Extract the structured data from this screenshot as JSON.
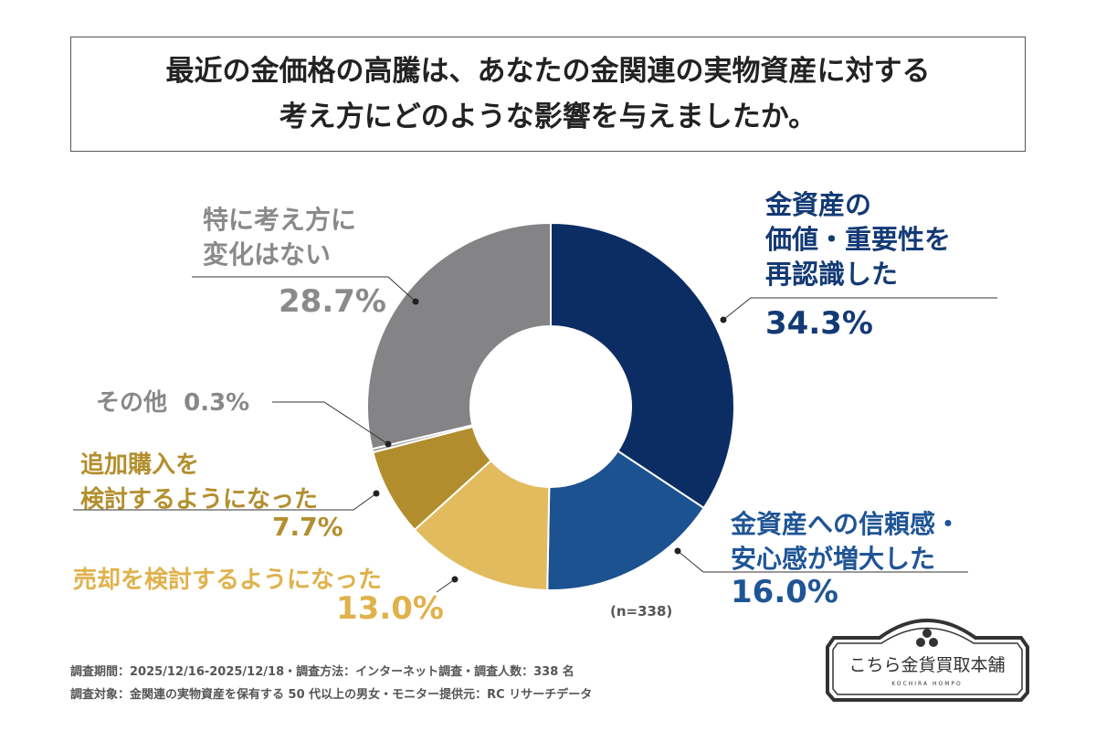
{
  "title": {
    "line1": "最近の金価格の高騰は、あなたの金関連の実物資産に対する",
    "line2": "考え方にどのような影響を与えましたか。"
  },
  "chart_data": {
    "type": "donut",
    "sample_size": "(n=338)",
    "slices": [
      {
        "label_lines": [
          "金資産の",
          "価値・重要性を",
          "再認識した"
        ],
        "value": 34.3,
        "display": "34.3%",
        "color": "#0c2d64",
        "text_color": "#133a75"
      },
      {
        "label_lines": [
          "金資産への信頼感・",
          "安心感が増大した"
        ],
        "value": 16.0,
        "display": "16.0%",
        "color": "#1d5291",
        "text_color": "#1f5596"
      },
      {
        "label_lines": [
          "売却を検討するようになった"
        ],
        "value": 13.0,
        "display": "13.0%",
        "color": "#e2bb5e",
        "text_color": "#e0b24c"
      },
      {
        "label_lines": [
          "追加購入を",
          "検討するようになった"
        ],
        "value": 7.7,
        "display": "7.7%",
        "color": "#b18d2e",
        "text_color": "#b38f2e"
      },
      {
        "label_lines": [
          "その他"
        ],
        "value": 0.3,
        "display": "0.3%",
        "color": "#9a9a9a",
        "text_color": "#888888"
      },
      {
        "label_lines": [
          "特に考え方に",
          "変化はない"
        ],
        "value": 28.7,
        "display": "28.7%",
        "color": "#848486",
        "text_color": "#8a8a8c"
      }
    ]
  },
  "footer": {
    "line1": "調査期間：2025/12/16-2025/12/18・調査方法：インターネット調査・調査人数：338 名",
    "line2": "調査対象：金関連の実物資産を保有する 50 代以上の男女・モニター提供元：RC リサーチデータ"
  },
  "logo": {
    "name": "こちら金貨買取本舗",
    "romaji": "KOCHIRA HOMPO"
  }
}
